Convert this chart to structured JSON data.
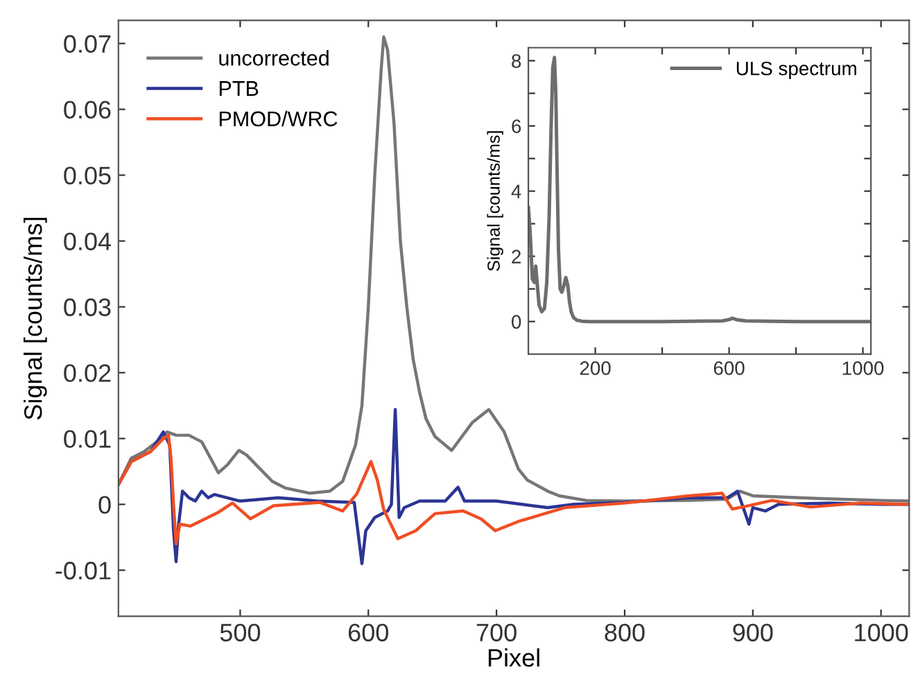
{
  "chart_data": [
    {
      "type": "line",
      "xlabel": "Pixel",
      "ylabel": "Signal [counts/ms]",
      "xlim": [
        405,
        1022
      ],
      "ylim": [
        -0.017,
        0.0735
      ],
      "xticks": [
        500,
        600,
        700,
        800,
        900,
        1000
      ],
      "yticks": [
        -0.01,
        0,
        0.01,
        0.02,
        0.03,
        0.04,
        0.05,
        0.06,
        0.07
      ],
      "grid": false,
      "legend": "top left",
      "series": [
        {
          "name": "uncorrected",
          "color": "#767676",
          "x": [
            405,
            415,
            425,
            435,
            443,
            450,
            460,
            470,
            483,
            490,
            499,
            505,
            515,
            525,
            535,
            554,
            570,
            580,
            590,
            595,
            600,
            605,
            610,
            612,
            615,
            620,
            625,
            630,
            635,
            640,
            645,
            652,
            665,
            681,
            694,
            706,
            717,
            724,
            740,
            749,
            770,
            800,
            850,
            880,
            890,
            900,
            950,
            1000,
            1022
          ],
          "values": [
            0.003,
            0.007,
            0.008,
            0.0095,
            0.011,
            0.0105,
            0.0105,
            0.0095,
            0.0048,
            0.006,
            0.0082,
            0.0075,
            0.0055,
            0.0035,
            0.0025,
            0.0017,
            0.002,
            0.0035,
            0.009,
            0.015,
            0.03,
            0.05,
            0.066,
            0.071,
            0.069,
            0.058,
            0.04,
            0.03,
            0.022,
            0.017,
            0.013,
            0.0103,
            0.0082,
            0.0124,
            0.0144,
            0.011,
            0.0054,
            0.0037,
            0.002,
            0.0013,
            0.0006,
            0.0005,
            0.0006,
            0.0008,
            0.002,
            0.0013,
            0.0009,
            0.0006,
            0.0005
          ]
        },
        {
          "name": "PTB",
          "color": "#2b3594",
          "x": [
            405,
            415,
            430,
            440,
            445,
            448,
            450,
            452,
            455,
            460,
            465,
            470,
            475,
            480,
            500,
            530,
            560,
            589,
            595,
            598,
            605,
            615,
            618,
            621,
            624,
            628,
            640,
            660,
            670,
            675,
            700,
            720,
            740,
            760,
            800,
            850,
            880,
            888,
            897,
            900,
            910,
            920,
            960,
            1000,
            1022
          ],
          "values": [
            0.003,
            0.0065,
            0.008,
            0.011,
            0.009,
            -0.004,
            -0.0087,
            -0.003,
            0.002,
            0.001,
            0.0005,
            0.002,
            0.001,
            0.0015,
            0.0005,
            0.001,
            0.0005,
            0.0003,
            -0.009,
            -0.004,
            -0.002,
            -0.001,
            0.0,
            0.0144,
            -0.002,
            -0.0005,
            0.0005,
            0.0005,
            0.0026,
            0.0005,
            0.0005,
            0.0,
            -0.0005,
            0.0,
            0.0003,
            0.001,
            0.001,
            0.002,
            -0.003,
            -0.0005,
            -0.001,
            0.0,
            0.0002,
            0.0,
            0.0
          ]
        },
        {
          "name": "PMOD/WRC",
          "color": "#f04e23",
          "x": [
            405,
            415,
            430,
            440,
            444,
            446,
            448,
            450,
            453,
            461,
            483,
            494,
            508,
            526,
            562,
            580,
            591,
            602,
            607,
            612,
            623,
            637,
            652,
            674,
            688,
            699,
            717,
            724,
            753,
            800,
            850,
            876,
            884,
            892,
            915,
            945,
            984,
            1022
          ],
          "values": [
            0.003,
            0.0065,
            0.008,
            0.01,
            0.0105,
            0.007,
            0.0,
            -0.006,
            -0.003,
            -0.0033,
            -0.0012,
            0.0002,
            -0.0022,
            -0.0002,
            0.0003,
            -0.001,
            0.0016,
            0.0065,
            0.0037,
            -0.0008,
            -0.0052,
            -0.004,
            -0.0014,
            -0.001,
            -0.0022,
            -0.004,
            -0.0026,
            -0.0022,
            -0.0005,
            0.0002,
            0.0013,
            0.0017,
            -0.0007,
            -0.0004,
            0.0006,
            -0.0004,
            0.0002,
            0.0
          ]
        }
      ]
    },
    {
      "type": "line",
      "ylabel": "Signal [counts/ms]",
      "xlim": [
        0,
        1024
      ],
      "ylim": [
        -1,
        8.4
      ],
      "xticks": [
        200,
        {
          "value": 400,
          "label": null
        },
        600,
        {
          "value": 800,
          "label": null
        },
        1000
      ],
      "yticks": [
        0,
        {
          "value": 1,
          "label": null
        },
        2,
        {
          "value": 3,
          "label": null
        },
        4,
        {
          "value": 5,
          "label": null
        },
        6,
        {
          "value": 7,
          "label": null
        },
        8
      ],
      "grid": false,
      "legend": "top right",
      "series": [
        {
          "name": "ULS spectrum",
          "color": "#6d6d6d",
          "x": [
            0,
            5,
            12,
            18,
            22,
            26,
            32,
            40,
            48,
            55,
            62,
            68,
            73,
            78,
            82,
            86,
            90,
            95,
            100,
            106,
            112,
            118,
            123,
            128,
            135,
            145,
            160,
            180,
            250,
            400,
            580,
            600,
            610,
            625,
            650,
            800,
            1024
          ],
          "values": [
            3.5,
            2.8,
            1.3,
            1.2,
            1.7,
            1.2,
            0.5,
            0.3,
            0.4,
            1.2,
            3.2,
            6.0,
            7.8,
            8.1,
            7.0,
            4.5,
            2.2,
            1.0,
            0.9,
            1.1,
            1.35,
            1.1,
            0.6,
            0.3,
            0.12,
            0.04,
            0.01,
            0.0,
            0.0,
            0.0,
            0.02,
            0.06,
            0.1,
            0.05,
            0.02,
            0.0,
            0.0
          ]
        }
      ]
    }
  ]
}
